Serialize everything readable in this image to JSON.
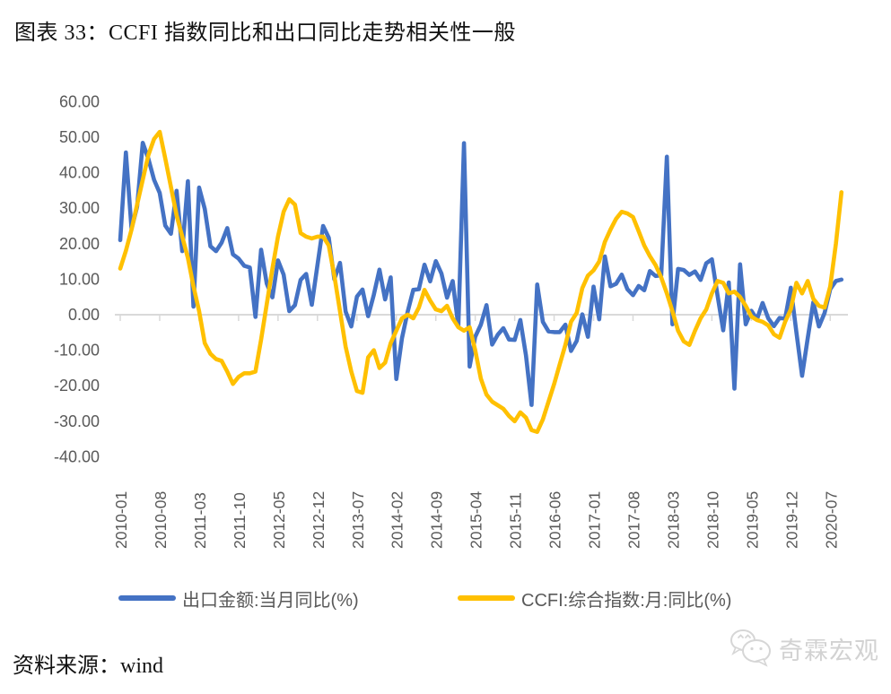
{
  "header": {
    "title": "图表 33：CCFI 指数同比和出口同比走势相关性一般"
  },
  "footer": {
    "source_label": "资料来源：wind",
    "logo_text": "奇霖宏观"
  },
  "colors": {
    "export_line": "#4472C4",
    "ccfi_line": "#FFC000",
    "axis_line": "#D9D9D9",
    "tick_label": "#595959",
    "legend_text": "#595959",
    "logo_gray": "#D2D2D2"
  },
  "chart_data": {
    "type": "line",
    "title": "图表 33：CCFI 指数同比和出口同比走势相关性一般",
    "xlabel": "",
    "ylabel": "",
    "ylim": [
      -40,
      60
    ],
    "yticks": [
      60,
      50,
      40,
      30,
      20,
      10,
      0,
      -10,
      -20,
      -30,
      -40
    ],
    "grid": false,
    "legend_position": "bottom",
    "xtick_every": 7,
    "visible_xtick_labels": [
      "2010-01",
      "2010-08",
      "2011-03",
      "2011-10",
      "2012-05",
      "2012-12",
      "2013-07",
      "2014-02",
      "2014-09",
      "2015-04",
      "2015-11",
      "2016-06",
      "2017-01",
      "2017-08",
      "2018-03",
      "2018-10",
      "2019-05",
      "2019-12",
      "2020-07"
    ],
    "categories": [
      "2010-01",
      "2010-02",
      "2010-03",
      "2010-04",
      "2010-05",
      "2010-06",
      "2010-07",
      "2010-08",
      "2010-09",
      "2010-10",
      "2010-11",
      "2010-12",
      "2011-01",
      "2011-02",
      "2011-03",
      "2011-04",
      "2011-05",
      "2011-06",
      "2011-07",
      "2011-08",
      "2011-09",
      "2011-10",
      "2011-11",
      "2011-12",
      "2012-01",
      "2012-02",
      "2012-03",
      "2012-04",
      "2012-05",
      "2012-06",
      "2012-07",
      "2012-08",
      "2012-09",
      "2012-10",
      "2012-11",
      "2012-12",
      "2013-01",
      "2013-02",
      "2013-03",
      "2013-04",
      "2013-05",
      "2013-06",
      "2013-07",
      "2013-08",
      "2013-09",
      "2013-10",
      "2013-11",
      "2013-12",
      "2014-01",
      "2014-02",
      "2014-03",
      "2014-04",
      "2014-05",
      "2014-06",
      "2014-07",
      "2014-08",
      "2014-09",
      "2014-10",
      "2014-11",
      "2014-12",
      "2015-01",
      "2015-02",
      "2015-03",
      "2015-04",
      "2015-05",
      "2015-06",
      "2015-07",
      "2015-08",
      "2015-09",
      "2015-10",
      "2015-11",
      "2015-12",
      "2016-01",
      "2016-02",
      "2016-03",
      "2016-04",
      "2016-05",
      "2016-06",
      "2016-07",
      "2016-08",
      "2016-09",
      "2016-10",
      "2016-11",
      "2016-12",
      "2017-01",
      "2017-02",
      "2017-03",
      "2017-04",
      "2017-05",
      "2017-06",
      "2017-07",
      "2017-08",
      "2017-09",
      "2017-10",
      "2017-11",
      "2017-12",
      "2018-01",
      "2018-02",
      "2018-03",
      "2018-04",
      "2018-05",
      "2018-06",
      "2018-07",
      "2018-08",
      "2018-09",
      "2018-10",
      "2018-11",
      "2018-12",
      "2019-01",
      "2019-02",
      "2019-03",
      "2019-04",
      "2019-05",
      "2019-06",
      "2019-07",
      "2019-08",
      "2019-09",
      "2019-10",
      "2019-11",
      "2019-12",
      "2020-01",
      "2020-02",
      "2020-03",
      "2020-04",
      "2020-05",
      "2020-06",
      "2020-07",
      "2020-08",
      "2020-09"
    ],
    "series": [
      {
        "name": "出口金额:当月同比(%)",
        "color": "#4472C4",
        "values": [
          21.0,
          45.7,
          24.2,
          30.4,
          48.4,
          43.9,
          38.0,
          34.3,
          25.1,
          22.8,
          34.9,
          17.9,
          37.6,
          2.3,
          35.8,
          29.8,
          19.3,
          17.9,
          20.3,
          24.4,
          17.0,
          15.8,
          13.8,
          13.3,
          -0.6,
          18.3,
          8.8,
          4.9,
          15.3,
          11.3,
          1.0,
          2.7,
          9.8,
          11.5,
          2.8,
          14.0,
          25.0,
          21.7,
          10.0,
          14.6,
          0.9,
          -3.3,
          5.1,
          7.1,
          -0.4,
          5.6,
          12.7,
          4.3,
          10.5,
          -18.1,
          -6.6,
          0.8,
          7.0,
          7.2,
          14.1,
          9.4,
          15.1,
          11.6,
          4.8,
          9.5,
          -3.2,
          48.3,
          -14.6,
          -6.2,
          -2.8,
          2.7,
          -8.4,
          -5.6,
          -3.8,
          -7.0,
          -7.1,
          -1.5,
          -11.5,
          -25.4,
          8.5,
          -2.0,
          -4.7,
          -4.9,
          -4.9,
          -2.8,
          -10.2,
          -7.4,
          0.1,
          -6.2,
          7.9,
          -1.3,
          16.4,
          8.0,
          8.7,
          11.3,
          7.2,
          5.5,
          8.1,
          6.9,
          12.3,
          10.9,
          11.1,
          44.5,
          -2.7,
          12.9,
          12.6,
          11.2,
          12.2,
          9.8,
          14.5,
          15.6,
          5.4,
          -4.4,
          9.1,
          -20.8,
          14.2,
          -2.7,
          1.1,
          -1.3,
          3.3,
          -1.0,
          -3.2,
          -0.9,
          -1.1,
          7.6,
          -5.0,
          -17.2,
          -6.6,
          3.5,
          -3.3,
          0.5,
          7.2,
          9.5,
          9.9
        ]
      },
      {
        "name": "CCFI:综合指数:月:同比(%)",
        "color": "#FFC000",
        "values": [
          13,
          18,
          24,
          31,
          38,
          45,
          49.5,
          51.5,
          44,
          36,
          28,
          22,
          16,
          8,
          1,
          -8,
          -11,
          -12.5,
          -13,
          -16,
          -19.5,
          -17.5,
          -16.5,
          -16.5,
          -16,
          -7,
          3,
          13,
          22,
          29,
          32.5,
          31,
          23,
          22,
          21.5,
          22,
          22,
          19.5,
          11,
          1,
          -9,
          -16,
          -21.5,
          -22,
          -12,
          -10,
          -15,
          -13.5,
          -8,
          -4.5,
          -1,
          0,
          -1,
          2,
          7,
          4,
          1.5,
          1,
          2.5,
          -1,
          -3.5,
          -4.5,
          -3.5,
          -10,
          -18,
          -22.5,
          -24.5,
          -25.5,
          -26.5,
          -28.5,
          -30,
          -27.5,
          -29,
          -32.5,
          -33,
          -29.5,
          -24.5,
          -19.5,
          -14,
          -8.5,
          -2,
          0.5,
          7.5,
          11,
          12.5,
          15,
          20.5,
          24,
          27,
          29,
          28.5,
          27.5,
          23.5,
          19.5,
          16.5,
          14,
          10.5,
          6,
          1,
          -4.5,
          -7.5,
          -8.5,
          -4.5,
          -1,
          1.5,
          6,
          9.5,
          9,
          6,
          6.5,
          5,
          2.5,
          -0.5,
          -1.5,
          -2,
          -3,
          -5.5,
          -6.5,
          -2,
          1.5,
          9,
          6,
          9.5,
          4.5,
          2.5,
          2,
          8,
          20,
          34.5
        ]
      }
    ]
  }
}
